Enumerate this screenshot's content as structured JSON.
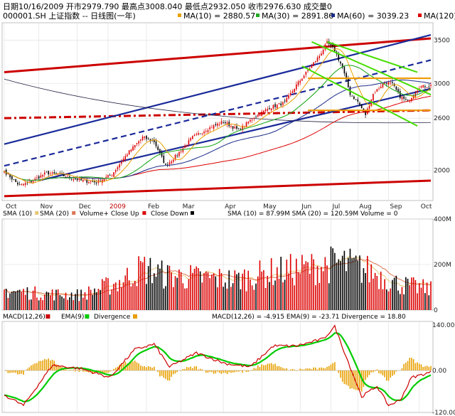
{
  "header": {
    "line1": "日期10/16/2009 开市2979.790 最高点3008.040 最低点2932.050 收市2976.630 成交量0",
    "symbol": "000001.SH 上证指数 -- 日线图(一年)",
    "ma": [
      {
        "label": "MA(10)",
        "value": "2880.57",
        "color": "#e8a000"
      },
      {
        "label": "MA(30)",
        "value": "2891.86",
        "color": "#22aa22"
      },
      {
        "label": "MA(60)",
        "value": "3039.23",
        "color": "#1a2a88"
      },
      {
        "label": "MA(120)",
        "value": "",
        "color": "#dd0000"
      }
    ],
    "separator": "="
  },
  "colors": {
    "up": "#dd0000",
    "down": "#000000",
    "ma10": "#e8a000",
    "ma30": "#22aa22",
    "ma60": "#1a2a88",
    "ma120": "#dd0000",
    "trend_blue": "#1a2a99",
    "trend_red": "#cc0000",
    "trend_green": "#44dd00",
    "trend_orange": "#ee9900",
    "macd": "#cc0000",
    "signal": "#00cc00",
    "hist": "#e8a000",
    "vol_sma10": "#e8c878",
    "vol_sma20": "#dd7755"
  },
  "chart_data": [
    {
      "type": "candlestick",
      "panel": "price",
      "title": "000001.SH 上证指数 -- 日线图(一年)",
      "ylim": [
        1650,
        3700
      ],
      "yticks": [
        2000,
        2600,
        3000,
        3500
      ],
      "xticks": [
        "Oct",
        "Nov",
        "Dec",
        "2009",
        "Feb",
        "Mar",
        "Apr",
        "May",
        "Jun",
        "Jul",
        "Aug",
        "Sep",
        "Oct"
      ],
      "grid": true,
      "anchors": [
        {
          "m": "2008-10",
          "i": 0,
          "p": 1990
        },
        {
          "i": 8,
          "p": 1820
        },
        {
          "i": 14,
          "p": 1870
        },
        {
          "i": 22,
          "p": 1970
        },
        {
          "i": 32,
          "p": 1930
        },
        {
          "i": 40,
          "p": 1880
        },
        {
          "i": 48,
          "p": 1860
        },
        {
          "i": 56,
          "p": 1950
        },
        {
          "i": 64,
          "p": 2190
        },
        {
          "i": 72,
          "p": 2380
        },
        {
          "i": 78,
          "p": 2330
        },
        {
          "i": 84,
          "p": 2050
        },
        {
          "i": 90,
          "p": 2180
        },
        {
          "i": 98,
          "p": 2380
        },
        {
          "i": 106,
          "p": 2480
        },
        {
          "i": 114,
          "p": 2560
        },
        {
          "i": 122,
          "p": 2460
        },
        {
          "i": 130,
          "p": 2610
        },
        {
          "i": 138,
          "p": 2720
        },
        {
          "i": 146,
          "p": 2780
        },
        {
          "i": 152,
          "p": 2980
        },
        {
          "i": 158,
          "p": 3150
        },
        {
          "i": 164,
          "p": 3320
        },
        {
          "i": 168,
          "p": 3470
        },
        {
          "i": 172,
          "p": 3380
        },
        {
          "i": 176,
          "p": 3180
        },
        {
          "i": 180,
          "p": 2880
        },
        {
          "i": 184,
          "p": 2790
        },
        {
          "i": 188,
          "p": 2640
        },
        {
          "i": 192,
          "p": 2880
        },
        {
          "i": 198,
          "p": 3020
        },
        {
          "i": 202,
          "p": 2990
        },
        {
          "i": 206,
          "p": 2850
        },
        {
          "i": 210,
          "p": 2790
        },
        {
          "i": 216,
          "p": 2960
        },
        {
          "i": 222,
          "p": 2976
        }
      ],
      "ma_latest": {
        "ma10": 2880.57,
        "ma30": 2891.86,
        "ma60": 3039.23
      },
      "last": {
        "date": "10/16/2009",
        "open": 2979.79,
        "high": 3008.04,
        "low": 2932.05,
        "close": 2976.63
      }
    },
    {
      "type": "bar",
      "panel": "volume",
      "legend": [
        "SMA (10)",
        "SMA (20)",
        "Volume+ Close Up",
        "Close Down"
      ],
      "summary": "SMA (10) = 87.99M    SMA (20) = 120.59M    Volume = 0",
      "ylim": [
        0,
        400
      ],
      "yticks": [
        "0",
        "200M",
        "400M"
      ],
      "levels": [
        {
          "i": 0,
          "v": 90
        },
        {
          "i": 20,
          "v": 75
        },
        {
          "i": 40,
          "v": 70
        },
        {
          "i": 60,
          "v": 130
        },
        {
          "i": 72,
          "v": 195
        },
        {
          "i": 84,
          "v": 160
        },
        {
          "i": 100,
          "v": 150
        },
        {
          "i": 120,
          "v": 140
        },
        {
          "i": 140,
          "v": 175
        },
        {
          "i": 160,
          "v": 195
        },
        {
          "i": 175,
          "v": 220
        },
        {
          "i": 190,
          "v": 180
        },
        {
          "i": 205,
          "v": 120
        },
        {
          "i": 222,
          "v": 95
        }
      ]
    },
    {
      "type": "line",
      "panel": "macd",
      "legend": [
        "MACD(12,26)",
        "EMA(9)",
        "Divergence"
      ],
      "summary": "MACD(12,26) = -4.915    EMA(9) = -23.71    Divergence = 18.80",
      "ylim": [
        -120,
        140
      ],
      "yticks": [
        "140.00",
        "0.00",
        "-120.00"
      ],
      "macd_anchors": [
        {
          "i": 0,
          "v": -70
        },
        {
          "i": 10,
          "v": -100
        },
        {
          "i": 25,
          "v": 15
        },
        {
          "i": 40,
          "v": 5
        },
        {
          "i": 55,
          "v": -20
        },
        {
          "i": 68,
          "v": 60
        },
        {
          "i": 78,
          "v": 75
        },
        {
          "i": 86,
          "v": 10
        },
        {
          "i": 100,
          "v": 50
        },
        {
          "i": 115,
          "v": 20
        },
        {
          "i": 128,
          "v": 10
        },
        {
          "i": 140,
          "v": 70
        },
        {
          "i": 152,
          "v": 70
        },
        {
          "i": 166,
          "v": 90
        },
        {
          "i": 172,
          "v": 125
        },
        {
          "i": 180,
          "v": 10
        },
        {
          "i": 186,
          "v": -75
        },
        {
          "i": 194,
          "v": -45
        },
        {
          "i": 200,
          "v": -100
        },
        {
          "i": 206,
          "v": -85
        },
        {
          "i": 212,
          "v": -20
        },
        {
          "i": 222,
          "v": -5
        }
      ],
      "last": {
        "macd": -4.915,
        "ema9": -23.71,
        "divergence": 18.8
      }
    }
  ],
  "trendlines": {
    "blue": [
      {
        "x1": 0,
        "y1": 2300,
        "x2": 222,
        "y2": 3560,
        "style": "solid"
      },
      {
        "x1": 18,
        "y1": 1880,
        "x2": 222,
        "y2": 2940,
        "style": "solid"
      },
      {
        "x1": 0,
        "y1": 2050,
        "x2": 222,
        "y2": 3270,
        "style": "dashed"
      }
    ],
    "red": [
      {
        "x1": 0,
        "y1": 3130,
        "x2": 222,
        "y2": 3520,
        "style": "solid"
      },
      {
        "x1": 0,
        "y1": 1700,
        "x2": 222,
        "y2": 1880,
        "style": "solid"
      },
      {
        "x1": 0,
        "y1": 2600,
        "x2": 222,
        "y2": 2690,
        "style": "dashdot"
      }
    ],
    "orange": [
      {
        "x1": 158,
        "y1": 3060,
        "x2": 222,
        "y2": 3060
      },
      {
        "x1": 158,
        "y1": 2690,
        "x2": 222,
        "y2": 2690
      }
    ],
    "green": [
      {
        "x1": 160,
        "y1": 3480,
        "x2": 222,
        "y2": 2870
      },
      {
        "x1": 155,
        "y1": 3200,
        "x2": 215,
        "y2": 2510
      },
      {
        "x1": 168,
        "y1": 3480,
        "x2": 215,
        "y2": 3130
      }
    ]
  }
}
